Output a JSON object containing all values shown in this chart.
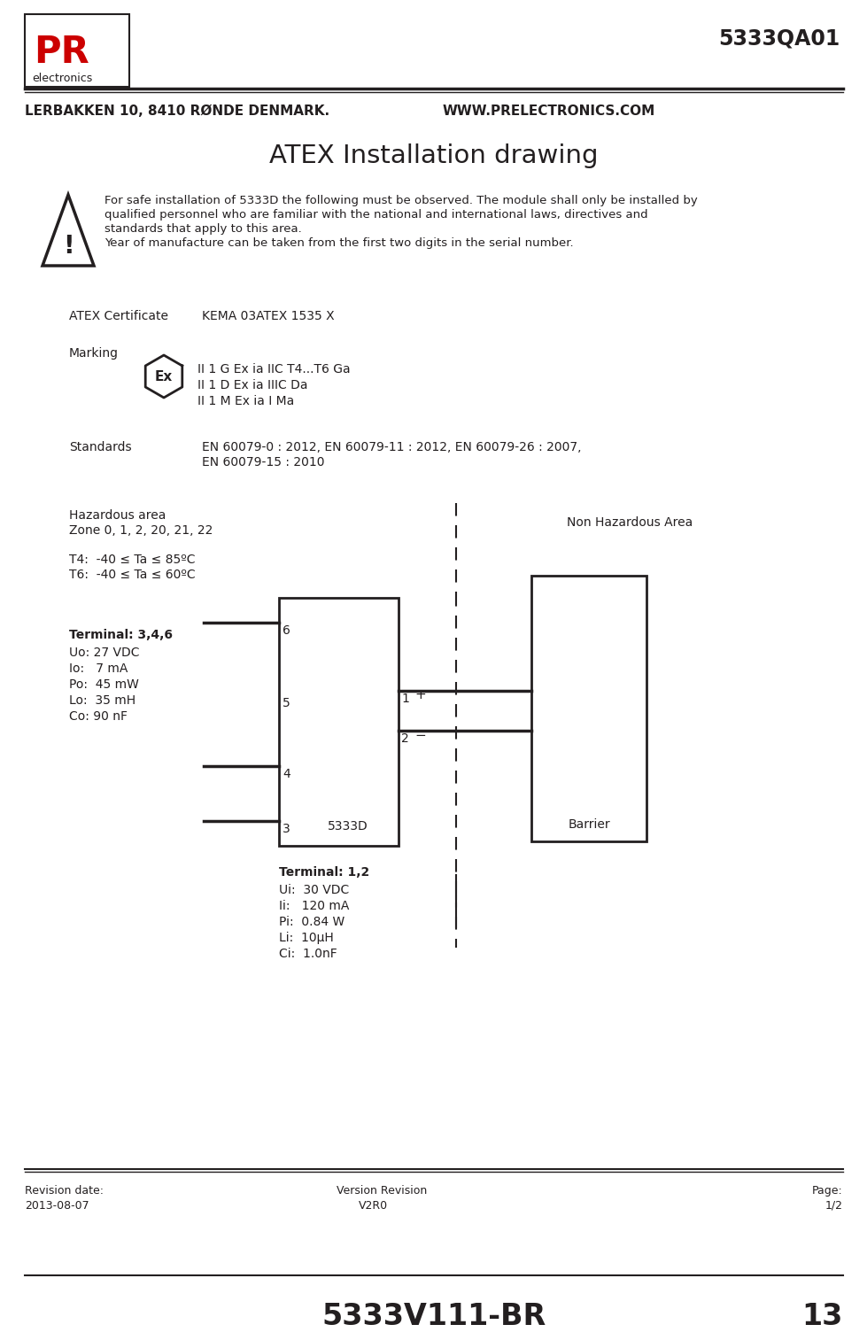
{
  "title": "ATEX Installation drawing",
  "product_code": "5333QA01",
  "company_left": "LERBAKKEN 10, 8410 RØNDE DENMARK.",
  "company_right": "WWW.PRELECTRONICS.COM",
  "warning_text_1": "For safe installation of 5333D the following must be observed. The module shall only be installed by",
  "warning_text_2": "qualified personnel who are familiar with the national and international laws, directives and",
  "warning_text_3": "standards that apply to this area.",
  "warning_text_4": "Year of manufacture can be taken from the first two digits in the serial number.",
  "atex_cert_label": "ATEX Certificate",
  "atex_cert_value": "KEMA 03ATEX 1535 X",
  "marking_label": "Marking",
  "marking_line1": "II 1 G Ex ia IIC T4...T6 Ga",
  "marking_line2": "II 1 D Ex ia IIIC Da",
  "marking_line3": "II 1 M Ex ia I Ma",
  "standards_label": "Standards",
  "standards_line1": "EN 60079-0 : 2012, EN 60079-11 : 2012, EN 60079-26 : 2007,",
  "standards_line2": "EN 60079-15 : 2010",
  "hazardous_area_line1": "Hazardous area",
  "hazardous_area_line2": "Zone 0, 1, 2, 20, 21, 22",
  "non_hazardous": "Non Hazardous Area",
  "t4_text": "T4:  -40 ≤ Ta ≤ 85ºC",
  "t6_text": "T6:  -40 ≤ Ta ≤ 60ºC",
  "terminal_346_label": "Terminal: 3,4,6",
  "uo": "Uo: 27 VDC",
  "io": "Io:   7 mA",
  "po": "Po:  45 mW",
  "lo": "Lo:  35 mH",
  "co": "Co: 90 nF",
  "terminal_12_label": "Terminal: 1,2",
  "ui": "Ui:  30 VDC",
  "ii": "Ii:   120 mA",
  "pi": "Pi:  0.84 W",
  "li": "Li:  10μH",
  "ci": "Ci:  1.0nF",
  "device_label": "5333D",
  "barrier_label": "Barrier",
  "revision_date_label": "Revision date:",
  "revision_date_value": "2013-08-07",
  "version_label": "Version Revision",
  "version_value": "V2R0",
  "page_label": "Page:",
  "page_value": "1/2",
  "footer_code": "5333V111-BR",
  "footer_page": "13",
  "bg_color": "#ffffff",
  "text_color": "#231f20",
  "red_color": "#cc0000",
  "line_color": "#231f20"
}
